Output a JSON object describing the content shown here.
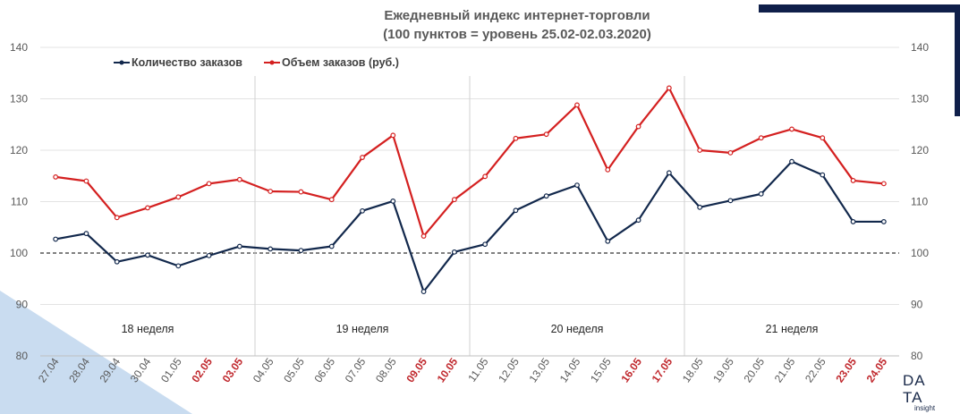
{
  "chart_data": {
    "type": "line",
    "title": [
      "Ежедневный индекс интернет-торговли",
      "(100 пунктов = уровень 25.02-02.03.2020)"
    ],
    "categories": [
      "27.04",
      "28.04",
      "29.04",
      "30.04",
      "01.05",
      "02.05",
      "03.05",
      "04.05",
      "05.05",
      "06.05",
      "07.05",
      "08.05",
      "09.05",
      "10.05",
      "11.05",
      "12.05",
      "13.05",
      "14.05",
      "15.05",
      "16.05",
      "17.05",
      "18.05",
      "19.05",
      "20.05",
      "21.05",
      "22.05",
      "23.05",
      "24.05"
    ],
    "highlighted_categories": [
      "02.05",
      "03.05",
      "09.05",
      "10.05",
      "16.05",
      "17.05",
      "23.05",
      "24.05"
    ],
    "series": [
      {
        "name": "Количество заказов",
        "color": "#12284c",
        "values": [
          102.7,
          103.8,
          98.3,
          99.6,
          97.5,
          99.5,
          101.3,
          100.8,
          100.5,
          101.3,
          108.2,
          110.1,
          92.5,
          100.2,
          101.7,
          108.3,
          111.1,
          113.2,
          102.3,
          106.4,
          115.6,
          108.9,
          110.2,
          111.5,
          117.8,
          115.2,
          106.1,
          106.1
        ]
      },
      {
        "name": "Объем заказов (руб.)",
        "color": "#d42020",
        "values": [
          114.8,
          114.0,
          106.9,
          108.8,
          110.9,
          113.5,
          114.3,
          112.0,
          111.9,
          110.4,
          118.6,
          122.9,
          103.3,
          110.4,
          114.9,
          122.3,
          123.1,
          128.8,
          116.2,
          124.6,
          132.1,
          120.0,
          119.5,
          122.4,
          124.1,
          122.4,
          114.1,
          113.5
        ]
      }
    ],
    "ylim": [
      80,
      140
    ],
    "yticks": [
      80,
      90,
      100,
      110,
      120,
      130,
      140
    ],
    "reference_line": 100,
    "week_groups": [
      {
        "label": "18 неделя",
        "start": 0,
        "end": 6
      },
      {
        "label": "19 неделя",
        "start": 7,
        "end": 13
      },
      {
        "label": "20 неделя",
        "start": 14,
        "end": 20
      },
      {
        "label": "21 неделя",
        "start": 21,
        "end": 27
      }
    ],
    "legend_position": "top-left",
    "colors": {
      "tick_normal": "#595959",
      "tick_highlight": "#c0282d",
      "accent_navy": "#0f1f4a",
      "accent_lightblue": "#c9dcf0"
    }
  },
  "logo": {
    "top": "DATA",
    "top_left": "DA",
    "top_right": "TA",
    "bottom": "insight"
  }
}
